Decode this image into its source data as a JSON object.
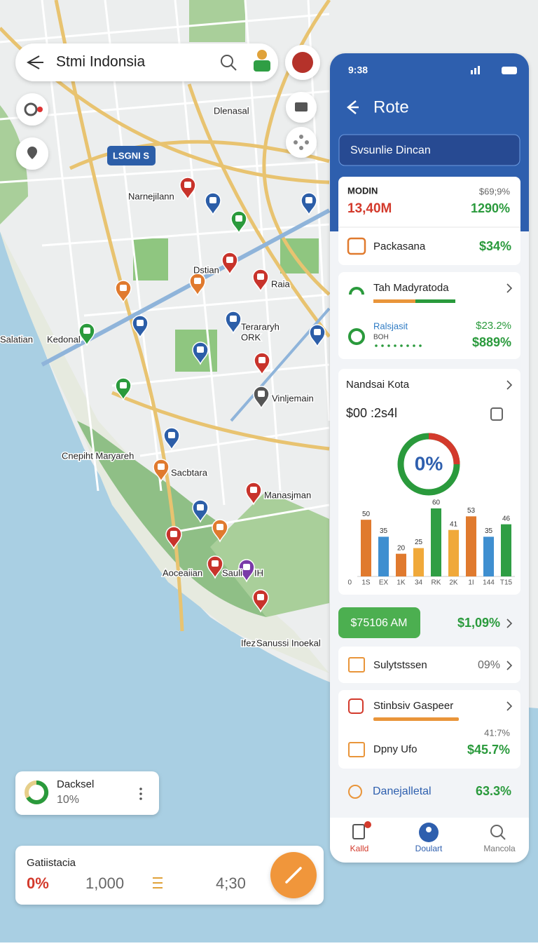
{
  "search": {
    "query": "Stmi Indonsia"
  },
  "map": {
    "badge": "LSGNI S",
    "labels": [
      "Dlenasal",
      "Narnejilann",
      "Dstian",
      "Raia",
      "Terararyh",
      "ORK",
      "Salatian",
      "Kedonal",
      "Vinljemain",
      "Cnepiht Maryareh",
      "Sacbtara",
      "Manasjman",
      "Aoceaiian",
      "Sauli",
      "IH",
      "Ifezl",
      "Sanussi Inoekal"
    ]
  },
  "panel": {
    "status_time": "9:38",
    "title": "Rote",
    "search": "Svsunlie Dincan",
    "summary": {
      "label": "MODIN",
      "value": "13,40M",
      "sub": "$69;9%",
      "change": "1290%",
      "item": "Packasana",
      "item_value": "$34%"
    },
    "route": {
      "title": "Tah Madyratoda",
      "name": "Ralsjasit",
      "code": "BOH",
      "sub": "$23.2%",
      "value": "$889%"
    },
    "overview": {
      "title": "Nandsai Kota",
      "amount": "$00 :2s4l",
      "gauge": "0%",
      "chart_data": {
        "type": "bar",
        "categories": [
          "1S",
          "EX",
          "1K",
          "34",
          "RK",
          "2K",
          "1I",
          "144",
          "T15"
        ],
        "values": [
          50,
          35,
          20,
          25,
          60,
          41,
          53,
          35,
          46
        ],
        "colors": [
          "#e07a2e",
          "#3f8fd0",
          "#e07a2e",
          "#f0a93a",
          "#2f9e44",
          "#f0a93a",
          "#e07a2e",
          "#3f8fd0",
          "#2f9e44"
        ],
        "ylim": [
          0,
          60
        ],
        "yticks": [
          0
        ]
      }
    },
    "action": {
      "button": "$75106 AM",
      "value": "$1,09%"
    },
    "list": [
      {
        "label": "Sulytstssen",
        "value": "09%"
      }
    ],
    "detail": {
      "title": "Stinbsiv Gaspeer",
      "sub": "41:7%",
      "item": "Dpny Ufo",
      "value": "$45.7%"
    },
    "footer_item": {
      "label": "Danejalletal",
      "value": "63.3%"
    },
    "nav": [
      "Kalld",
      "Doulart",
      "Mancola"
    ]
  },
  "cards": {
    "small": {
      "title": "Dacksel",
      "value": "10%"
    },
    "bottom": {
      "title": "Gatiistacia",
      "stats": [
        "0%",
        "1,000",
        "4;30"
      ]
    }
  }
}
